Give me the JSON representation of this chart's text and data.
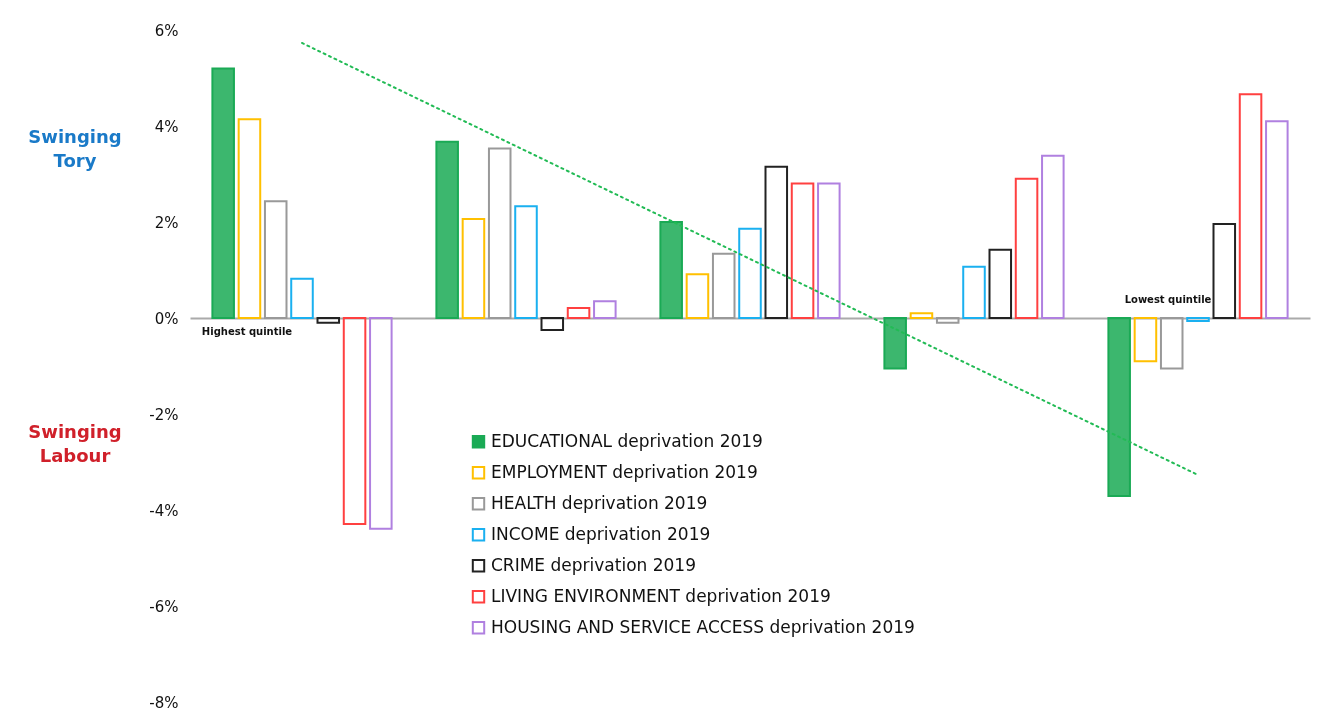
{
  "chart_data": {
    "type": "bar",
    "categories": [
      "Highest quintile",
      null,
      null,
      null,
      "Lowest quintile"
    ],
    "series": [
      {
        "name": "EDUCATIONAL deprivation 2019",
        "color": "#1aaa55",
        "values": [
          5.2,
          3.67,
          2.0,
          -1.05,
          -3.71
        ]
      },
      {
        "name": "EMPLOYMENT deprivation 2019",
        "color": "#ffc000",
        "values": [
          4.14,
          2.06,
          0.91,
          0.1,
          -0.9
        ]
      },
      {
        "name": "HEALTH deprivation 2019",
        "color": "#999999",
        "values": [
          2.43,
          3.53,
          1.34,
          -0.1,
          -1.05
        ]
      },
      {
        "name": "INCOME deprivation 2019",
        "color": "#1ab0f0",
        "values": [
          0.82,
          2.33,
          1.86,
          1.07,
          -0.06
        ]
      },
      {
        "name": "CRIME deprivation 2019",
        "color": "#222222",
        "values": [
          -0.1,
          -0.25,
          3.15,
          1.42,
          1.96
        ]
      },
      {
        "name": "LIVING ENVIRONMENT deprivation 2019",
        "color": "#ff4040",
        "values": [
          -4.29,
          0.21,
          2.8,
          2.9,
          4.66
        ]
      },
      {
        "name": "HOUSING AND SERVICE ACCESS deprivation 2019",
        "color": "#b080e0",
        "values": [
          -4.39,
          0.35,
          2.8,
          3.38,
          4.1
        ]
      },
      {
        "type": "line",
        "color": "#22bb55",
        "line_style": "dotted",
        "marker": "none",
        "values": [
          5.73,
          3.48,
          1.23,
          -1.02,
          -3.27
        ]
      }
    ],
    "ylim": [
      -8,
      6
    ],
    "yticks": [
      {
        "value": -8,
        "label": "-8%"
      },
      {
        "value": -6,
        "label": "-6%"
      },
      {
        "value": -4,
        "label": "-4%"
      },
      {
        "value": -2,
        "label": "-2%"
      },
      {
        "value": 0,
        "label": "0%"
      },
      {
        "value": 2,
        "label": "2%"
      },
      {
        "value": 4,
        "label": "4%"
      },
      {
        "value": 6,
        "label": "6%"
      }
    ],
    "legend": "bottom",
    "annotations": [
      "Swinging Tory",
      "Swinging Labour"
    ]
  }
}
